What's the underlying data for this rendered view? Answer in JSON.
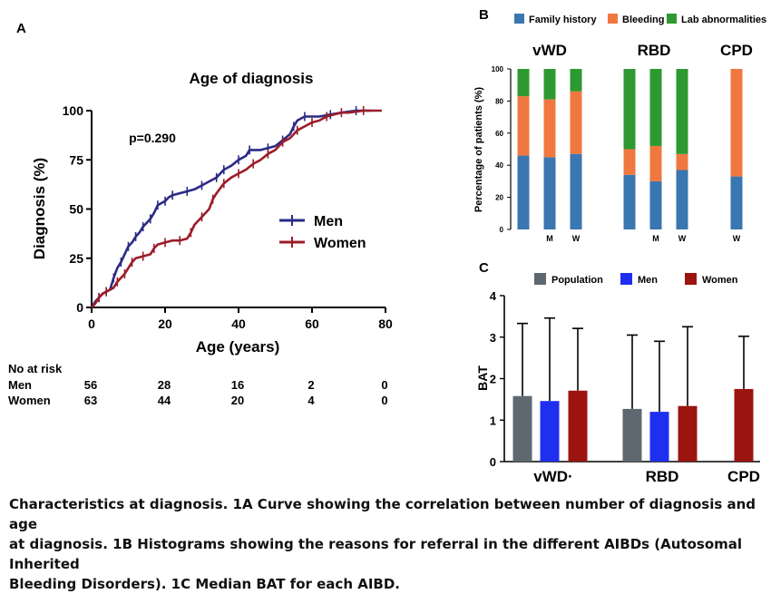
{
  "panels": {
    "a": {
      "letter": "A",
      "chart_data": {
        "type": "line",
        "title": "Age of diagnosis",
        "xlabel": "Age (years)",
        "ylabel": "Diagnosis (%)",
        "xlim": [
          0,
          80
        ],
        "ylim": [
          0,
          100
        ],
        "x_ticks": [
          "0",
          "20",
          "40",
          "60",
          "80"
        ],
        "y_ticks": [
          "0",
          "25",
          "50",
          "75",
          "100"
        ],
        "annotation": "p=0.290",
        "legend_position": "center-right",
        "series": [
          {
            "name": "Men",
            "color": "#2b2a86",
            "points": [
              [
                0,
                0
              ],
              [
                1,
                3
              ],
              [
                2,
                5
              ],
              [
                3,
                7
              ],
              [
                4,
                8
              ],
              [
                5,
                9
              ],
              [
                6,
                15
              ],
              [
                7,
                20
              ],
              [
                8,
                23
              ],
              [
                9,
                27
              ],
              [
                10,
                31
              ],
              [
                11,
                33
              ],
              [
                12,
                36
              ],
              [
                13,
                38
              ],
              [
                14,
                41
              ],
              [
                15,
                43
              ],
              [
                16,
                45
              ],
              [
                17,
                48
              ],
              [
                18,
                52
              ],
              [
                19,
                53
              ],
              [
                20,
                54
              ],
              [
                21,
                56
              ],
              [
                22,
                57
              ],
              [
                24,
                58
              ],
              [
                26,
                59
              ],
              [
                28,
                60
              ],
              [
                30,
                62
              ],
              [
                32,
                64
              ],
              [
                34,
                66
              ],
              [
                35,
                68
              ],
              [
                36,
                70
              ],
              [
                38,
                72
              ],
              [
                40,
                75
              ],
              [
                42,
                77
              ],
              [
                43,
                80
              ],
              [
                46,
                80
              ],
              [
                48,
                81
              ],
              [
                50,
                82
              ],
              [
                52,
                85
              ],
              [
                54,
                88
              ],
              [
                55,
                92
              ],
              [
                56,
                95
              ],
              [
                58,
                97
              ],
              [
                62,
                97
              ],
              [
                65,
                98
              ],
              [
                68,
                99
              ],
              [
                72,
                100
              ],
              [
                76,
                100
              ]
            ]
          },
          {
            "name": "Women",
            "color": "#9b1c28",
            "points": [
              [
                0,
                0
              ],
              [
                1,
                2
              ],
              [
                2,
                5
              ],
              [
                3,
                7
              ],
              [
                4,
                8
              ],
              [
                6,
                10
              ],
              [
                7,
                13
              ],
              [
                8,
                15
              ],
              [
                9,
                17
              ],
              [
                10,
                20
              ],
              [
                11,
                23
              ],
              [
                12,
                25
              ],
              [
                14,
                26
              ],
              [
                16,
                27
              ],
              [
                17,
                30
              ],
              [
                18,
                32
              ],
              [
                20,
                33
              ],
              [
                22,
                34
              ],
              [
                24,
                34
              ],
              [
                26,
                35
              ],
              [
                27,
                38
              ],
              [
                28,
                42
              ],
              [
                30,
                46
              ],
              [
                32,
                50
              ],
              [
                33,
                55
              ],
              [
                34,
                58
              ],
              [
                36,
                63
              ],
              [
                38,
                66
              ],
              [
                40,
                68
              ],
              [
                42,
                70
              ],
              [
                44,
                73
              ],
              [
                46,
                75
              ],
              [
                48,
                78
              ],
              [
                50,
                80
              ],
              [
                52,
                84
              ],
              [
                54,
                86
              ],
              [
                56,
                90
              ],
              [
                58,
                92
              ],
              [
                60,
                94
              ],
              [
                62,
                95
              ],
              [
                64,
                97
              ],
              [
                66,
                98
              ],
              [
                68,
                99
              ],
              [
                70,
                99
              ],
              [
                74,
                100
              ],
              [
                79,
                100
              ]
            ]
          }
        ]
      },
      "risk_table": {
        "heading": "No at risk",
        "rows": [
          {
            "label": "Men",
            "values": [
              "56",
              "28",
              "16",
              "2",
              "0"
            ]
          },
          {
            "label": "Women",
            "values": [
              "63",
              "44",
              "20",
              "4",
              "0"
            ]
          }
        ]
      }
    },
    "b": {
      "letter": "B",
      "chart_data": {
        "type": "bar",
        "stacked": true,
        "ylabel": "Percentage of patients (%)",
        "ylim": [
          0,
          100
        ],
        "y_ticks": [
          "0",
          "20",
          "40",
          "60",
          "80",
          "100"
        ],
        "legend_position": "top",
        "groups": [
          "vWD",
          "RBD",
          "CPD"
        ],
        "series": [
          {
            "name": "Family history",
            "color": "#3a76b0"
          },
          {
            "name": "Bleeding",
            "color": "#f07840"
          },
          {
            "name": "Lab abnormalities",
            "color": "#2e9930"
          }
        ],
        "bars": [
          {
            "group": "vWD",
            "label": "",
            "values": [
              46,
              37,
              17
            ]
          },
          {
            "group": "vWD",
            "label": "M",
            "values": [
              45,
              36,
              19
            ]
          },
          {
            "group": "vWD",
            "label": "W",
            "values": [
              47,
              39,
              14
            ]
          },
          {
            "group": "RBD",
            "label": "",
            "values": [
              34,
              16,
              50
            ]
          },
          {
            "group": "RBD",
            "label": "M",
            "values": [
              30,
              22,
              48
            ]
          },
          {
            "group": "RBD",
            "label": "W",
            "values": [
              37,
              10,
              53
            ]
          },
          {
            "group": "CPD",
            "label": "W",
            "values": [
              33,
              67,
              0
            ]
          }
        ]
      }
    },
    "c": {
      "letter": "C",
      "chart_data": {
        "type": "bar",
        "ylabel": "BAT",
        "ylim": [
          0,
          4
        ],
        "y_ticks": [
          "0",
          "1",
          "2",
          "3",
          "4"
        ],
        "legend_position": "top",
        "categories": [
          "vWD",
          "RBD",
          "CPD"
        ],
        "category_labels": [
          "vWD·",
          "RBD",
          "CPD"
        ],
        "series": [
          {
            "name": "Population",
            "color": "#5d6870",
            "values": [
              1.58,
              1.27,
              null
            ],
            "error_upper": [
              3.33,
              3.05,
              null
            ]
          },
          {
            "name": "Men",
            "color": "#1f2ff0",
            "values": [
              1.46,
              1.2,
              null
            ],
            "error_upper": [
              3.46,
              2.9,
              null
            ]
          },
          {
            "name": "Women",
            "color": "#9b1410",
            "values": [
              1.71,
              1.34,
              1.75
            ],
            "error_upper": [
              3.21,
              3.25,
              3.02
            ]
          }
        ]
      }
    }
  },
  "caption": {
    "lines": [
      "Characteristics at diagnosis. 1A Curve showing the correlation between number of diagnosis and age",
      "at diagnosis. 1B Histograms showing the reasons for referral in the different AIBDs (Autosomal Inherited",
      "Bleeding Disorders). 1C Median BAT for each AIBD."
    ]
  }
}
